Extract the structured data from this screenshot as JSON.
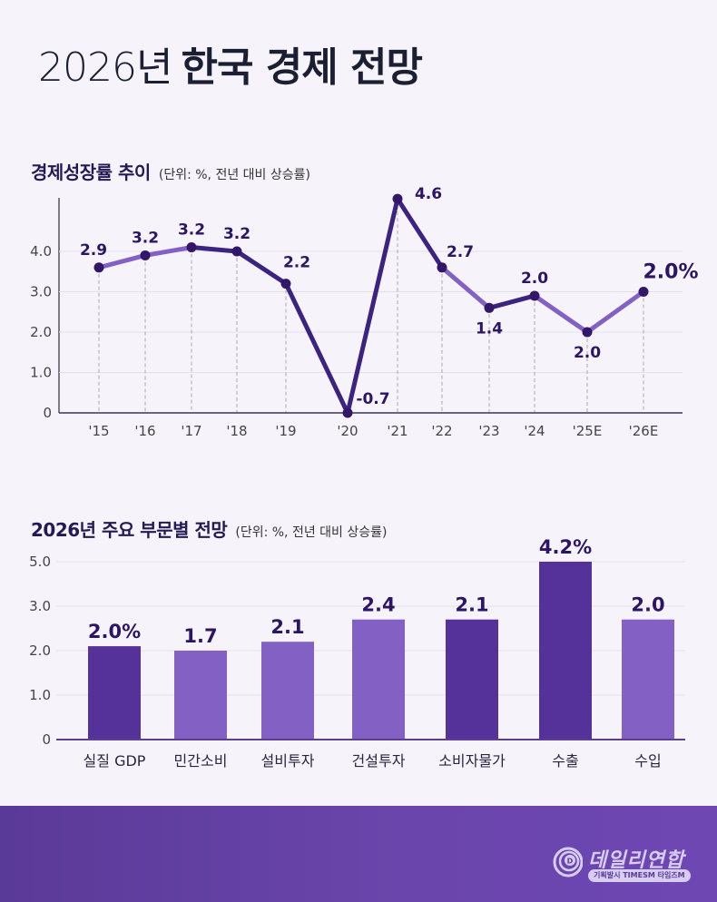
{
  "header": {
    "title_light": "2026년",
    "title_bold": "한국 경제 전망"
  },
  "section1": {
    "title": "경제성장률 추이",
    "unit": "(단위: %, 전년 대비 상승률)"
  },
  "section2": {
    "title": "2026년 주요 부문별 전망",
    "unit": "(단위: %, 전년 대비 상승률)"
  },
  "footer": {
    "logo_name": "데일리연합",
    "logo_sub": "기획발시 TIMESM 타임즈M",
    "background_color": "#5f3d9e"
  },
  "colors": {
    "dark_purple": "#3d2380",
    "mid_purple": "#55319a",
    "light_purple": "#8260c4",
    "label": "#2c1566"
  },
  "chart_data": [
    {
      "type": "line",
      "title": "경제성장률 추이",
      "subtitle": "(단위: %, 전년 대비 상승률)",
      "xlabel": "",
      "ylabel": "",
      "ylim": [
        0,
        5
      ],
      "yticks": [
        "0",
        "1.0",
        "2.0",
        "3.0",
        "4.0"
      ],
      "ytick_values": [
        0,
        1,
        2,
        3,
        4
      ],
      "grid": true,
      "legend": "none",
      "x": [
        "'15",
        "'16",
        "'17",
        "'18",
        "'19",
        "'20",
        "'21",
        "'22",
        "'23",
        "'24",
        "'25E",
        "'26E"
      ],
      "labels": [
        "2.9",
        "3.2",
        "3.2",
        "3.2",
        "2.2",
        "-0.7",
        "4.6",
        "2.7",
        "1.4",
        "2.0",
        "2.0",
        "2.0%"
      ],
      "values": [
        2.9,
        3.2,
        3.2,
        3.2,
        2.2,
        -0.7,
        4.6,
        2.7,
        1.4,
        2.0,
        2.0,
        2.0
      ],
      "plotted_values": [
        3.6,
        3.9,
        4.1,
        4.0,
        3.2,
        0.0,
        5.3,
        3.6,
        2.6,
        2.9,
        2.0,
        3.0
      ],
      "segment_tone": [
        "light",
        "light",
        "dark",
        "dark",
        "dark",
        "dark",
        "dark",
        "light",
        "dark",
        "light",
        "light"
      ]
    },
    {
      "type": "bar",
      "title": "2026년 주요 부문별 전망",
      "subtitle": "(단위: %, 전년 대비 상승률)",
      "xlabel": "",
      "ylabel": "",
      "yticks": [
        "0",
        "1.0",
        "2.0",
        "3.0",
        "5.0"
      ],
      "grid": true,
      "legend": "none",
      "categories": [
        "실질 GDP",
        "민간소비",
        "설비투자",
        "건설투자",
        "소비자물가",
        "수출",
        "수입"
      ],
      "labels": [
        "2.0%",
        "1.7",
        "2.1",
        "2.4",
        "2.1",
        "4.2%",
        "2.0"
      ],
      "values": [
        2.0,
        1.7,
        2.1,
        2.4,
        2.1,
        4.2,
        2.0
      ],
      "plotted_values": [
        2.1,
        2.0,
        2.2,
        2.7,
        2.7,
        4.0,
        2.7
      ],
      "tones": [
        "dark",
        "light",
        "light",
        "light",
        "dark",
        "dark",
        "light"
      ]
    }
  ]
}
